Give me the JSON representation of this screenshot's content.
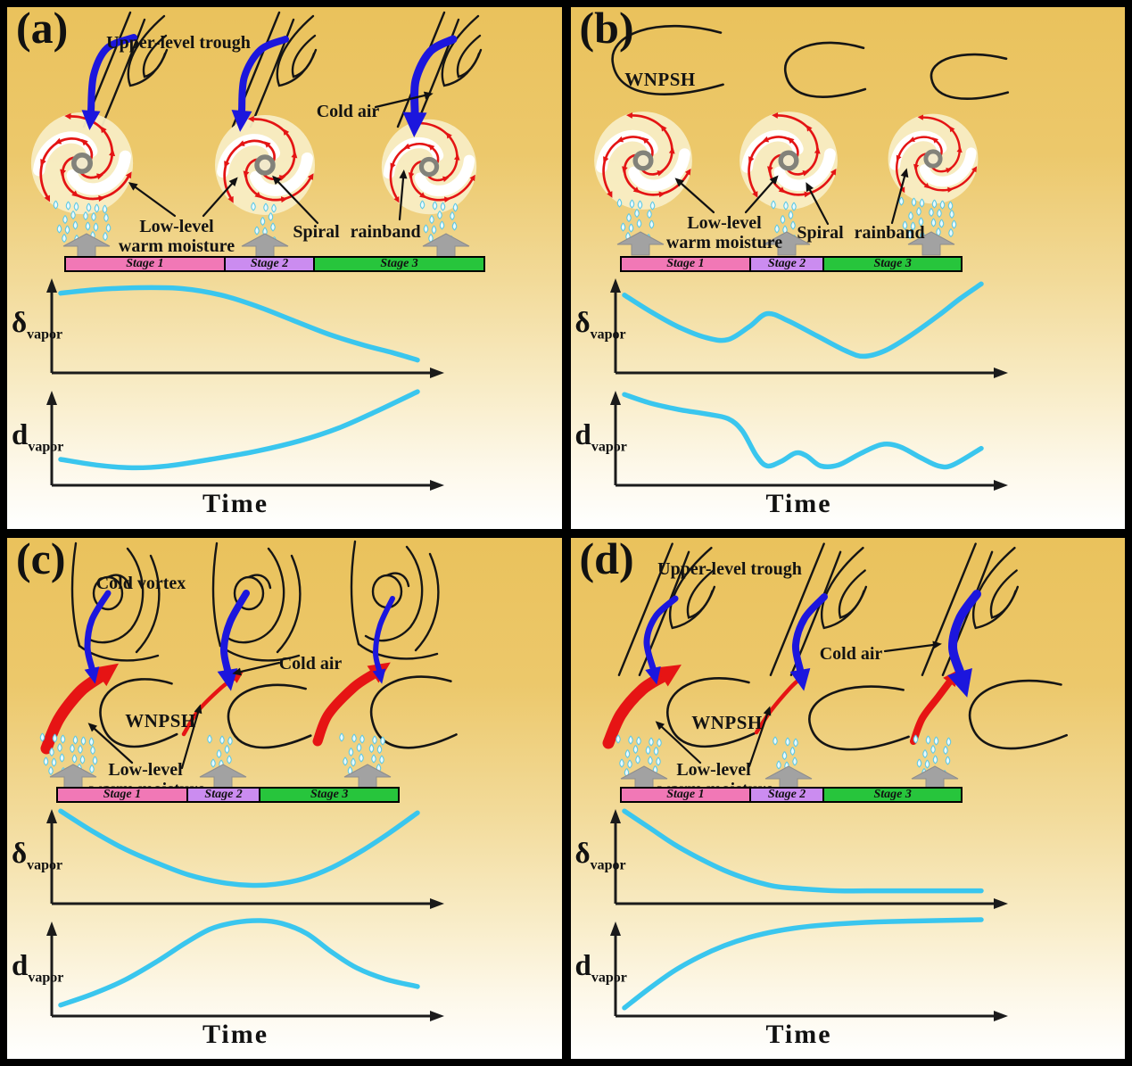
{
  "figure": {
    "layout": "2x2 panel schematic",
    "stage_colors": [
      "#f178b6",
      "#cb8cf0",
      "#27c53c"
    ],
    "curve_color": "#3ac6ee",
    "background_top": "#eac25c",
    "background_bottom": "#ffffff",
    "stage_widths_pct": [
      38,
      21.5,
      40.5
    ]
  },
  "panels": [
    {
      "id": "a",
      "label": "(a)",
      "scene": {
        "type": "upper-level-trough-with-typhoons",
        "labels": {
          "feature": "Upper-level trough",
          "cold_air": "Cold air",
          "low1": "Low-level",
          "low2": "warm moisture",
          "rainband": "Spiral rainband"
        }
      },
      "stages": [
        {
          "label": "Stage 1"
        },
        {
          "label": "Stage 2"
        },
        {
          "label": "Stage 3"
        }
      ],
      "charts": [
        {
          "sym": "δ",
          "sub": "vapor"
        },
        {
          "sym": "d",
          "sub": "vapor"
        }
      ],
      "xlabel": "Time"
    },
    {
      "id": "b",
      "label": "(b)",
      "scene": {
        "type": "wnpsh-with-typhoons",
        "labels": {
          "feature": "WNPSH",
          "low1": "Low-level",
          "low2": "warm moisture",
          "rainband": "Spiral rainband"
        }
      },
      "stages": [
        {
          "label": "Stage 1"
        },
        {
          "label": "Stage 2"
        },
        {
          "label": "Stage 3"
        }
      ],
      "charts": [
        {
          "sym": "δ",
          "sub": "vapor"
        },
        {
          "sym": "d",
          "sub": "vapor"
        }
      ],
      "xlabel": "Time"
    },
    {
      "id": "c",
      "label": "(c)",
      "scene": {
        "type": "cold-vortex-over-wnpsh",
        "labels": {
          "feature": "Cold vortex",
          "cold_air": "Cold air",
          "wnpsh": "WNPSH",
          "low1": "Low-level",
          "low2": "warm moisture"
        }
      },
      "stages": [
        {
          "label": "Stage 1"
        },
        {
          "label": "Stage 2"
        },
        {
          "label": "Stage 3"
        }
      ],
      "charts": [
        {
          "sym": "δ",
          "sub": "vapor"
        },
        {
          "sym": "d",
          "sub": "vapor"
        }
      ],
      "xlabel": "Time"
    },
    {
      "id": "d",
      "label": "(d)",
      "scene": {
        "type": "upper-level-trough-over-wnpsh",
        "labels": {
          "feature": "Upper-level trough",
          "cold_air": "Cold air",
          "wnpsh": "WNPSH",
          "low1": "Low-level",
          "low2": "warm moisture"
        }
      },
      "stages": [
        {
          "label": "Stage 1"
        },
        {
          "label": "Stage 2"
        },
        {
          "label": "Stage 3"
        }
      ],
      "charts": [
        {
          "sym": "δ",
          "sub": "vapor"
        },
        {
          "sym": "d",
          "sub": "vapor"
        }
      ],
      "xlabel": "Time"
    }
  ],
  "chart_data": [
    {
      "panel": "a",
      "type": "line",
      "xlabel": "Time",
      "x_range": [
        0,
        1
      ],
      "y_axis": "qualitative schematic (no ticks)",
      "stage_boundaries_x": [
        0.38,
        0.595
      ],
      "series": [
        {
          "name": "δ_vapor",
          "description": "high and nearly flat through Stage 1, then declines steadily through Stages 2-3 to a low value",
          "points": [
            [
              0,
              0.82
            ],
            [
              0.1,
              0.86
            ],
            [
              0.22,
              0.88
            ],
            [
              0.34,
              0.87
            ],
            [
              0.45,
              0.8
            ],
            [
              0.55,
              0.68
            ],
            [
              0.65,
              0.53
            ],
            [
              0.75,
              0.38
            ],
            [
              0.85,
              0.26
            ],
            [
              0.93,
              0.18
            ],
            [
              1,
              0.1
            ]
          ]
        },
        {
          "name": "d_vapor",
          "description": "low with a slight dip in Stage 1, then rises increasingly fast to a high value at the end",
          "points": [
            [
              0,
              0.24
            ],
            [
              0.1,
              0.18
            ],
            [
              0.2,
              0.15
            ],
            [
              0.3,
              0.17
            ],
            [
              0.42,
              0.24
            ],
            [
              0.55,
              0.33
            ],
            [
              0.67,
              0.44
            ],
            [
              0.78,
              0.58
            ],
            [
              0.88,
              0.75
            ],
            [
              1,
              0.97
            ]
          ]
        }
      ]
    },
    {
      "panel": "b",
      "type": "line",
      "xlabel": "Time",
      "x_range": [
        0,
        1
      ],
      "y_axis": "qualitative schematic (no ticks)",
      "stage_boundaries_x": [
        0.38,
        0.595
      ],
      "series": [
        {
          "name": "δ_vapor",
          "description": "falls to a minimum, recovers to a local maximum, falls to a deeper minimum near Stage 2/3 boundary, then rises to the highest value",
          "points": [
            [
              0,
              0.8
            ],
            [
              0.07,
              0.63
            ],
            [
              0.15,
              0.46
            ],
            [
              0.23,
              0.34
            ],
            [
              0.29,
              0.32
            ],
            [
              0.35,
              0.46
            ],
            [
              0.4,
              0.6
            ],
            [
              0.46,
              0.52
            ],
            [
              0.54,
              0.36
            ],
            [
              0.62,
              0.2
            ],
            [
              0.67,
              0.14
            ],
            [
              0.73,
              0.2
            ],
            [
              0.8,
              0.36
            ],
            [
              0.88,
              0.58
            ],
            [
              0.94,
              0.76
            ],
            [
              1,
              0.92
            ]
          ]
        },
        {
          "name": "d_vapor",
          "description": "starts high, gentle decline then sharp drop late in Stage 1, small oscillations (two bumps) through Stages 2-3, slight rise at end",
          "points": [
            [
              0,
              0.94
            ],
            [
              0.07,
              0.85
            ],
            [
              0.15,
              0.78
            ],
            [
              0.23,
              0.73
            ],
            [
              0.29,
              0.68
            ],
            [
              0.33,
              0.55
            ],
            [
              0.37,
              0.28
            ],
            [
              0.4,
              0.17
            ],
            [
              0.44,
              0.22
            ],
            [
              0.48,
              0.31
            ],
            [
              0.51,
              0.28
            ],
            [
              0.55,
              0.17
            ],
            [
              0.6,
              0.18
            ],
            [
              0.66,
              0.3
            ],
            [
              0.72,
              0.4
            ],
            [
              0.77,
              0.38
            ],
            [
              0.83,
              0.26
            ],
            [
              0.88,
              0.17
            ],
            [
              0.92,
              0.18
            ],
            [
              1,
              0.36
            ]
          ]
        }
      ]
    },
    {
      "panel": "c",
      "type": "line",
      "xlabel": "Time",
      "x_range": [
        0,
        1
      ],
      "y_axis": "qualitative schematic (no ticks)",
      "stage_boundaries_x": [
        0.38,
        0.595
      ],
      "series": [
        {
          "name": "δ_vapor",
          "description": "U-shape: high at start, broad minimum around Stage 2, rises back to high at end",
          "points": [
            [
              0,
              0.96
            ],
            [
              0.09,
              0.74
            ],
            [
              0.18,
              0.55
            ],
            [
              0.27,
              0.4
            ],
            [
              0.36,
              0.27
            ],
            [
              0.45,
              0.19
            ],
            [
              0.53,
              0.16
            ],
            [
              0.6,
              0.17
            ],
            [
              0.68,
              0.23
            ],
            [
              0.76,
              0.35
            ],
            [
              0.84,
              0.52
            ],
            [
              0.92,
              0.72
            ],
            [
              1,
              0.94
            ]
          ]
        },
        {
          "name": "d_vapor",
          "description": "inverted U: low at start, broad plateau maximum around Stage 2, declines through Stage 3",
          "points": [
            [
              0,
              0.08
            ],
            [
              0.09,
              0.2
            ],
            [
              0.18,
              0.35
            ],
            [
              0.27,
              0.55
            ],
            [
              0.35,
              0.75
            ],
            [
              0.42,
              0.9
            ],
            [
              0.49,
              0.97
            ],
            [
              0.56,
              0.99
            ],
            [
              0.62,
              0.96
            ],
            [
              0.69,
              0.85
            ],
            [
              0.76,
              0.65
            ],
            [
              0.83,
              0.48
            ],
            [
              0.91,
              0.36
            ],
            [
              1,
              0.28
            ]
          ]
        }
      ]
    },
    {
      "panel": "d",
      "type": "line",
      "xlabel": "Time",
      "x_range": [
        0,
        1
      ],
      "y_axis": "qualitative schematic (no ticks)",
      "stage_boundaries_x": [
        0.38,
        0.595
      ],
      "series": [
        {
          "name": "δ_vapor",
          "description": "exponential-like decay from high to a low flat plateau reached near end of Stage 1",
          "points": [
            [
              0,
              0.96
            ],
            [
              0.07,
              0.78
            ],
            [
              0.14,
              0.6
            ],
            [
              0.21,
              0.45
            ],
            [
              0.28,
              0.32
            ],
            [
              0.35,
              0.22
            ],
            [
              0.42,
              0.15
            ],
            [
              0.5,
              0.12
            ],
            [
              0.6,
              0.1
            ],
            [
              0.72,
              0.1
            ],
            [
              0.85,
              0.1
            ],
            [
              1,
              0.1
            ]
          ]
        },
        {
          "name": "d_vapor",
          "description": "exponential-like rise from low to a high flat plateau reached near end of Stage 1",
          "points": [
            [
              0,
              0.05
            ],
            [
              0.07,
              0.26
            ],
            [
              0.14,
              0.45
            ],
            [
              0.21,
              0.6
            ],
            [
              0.28,
              0.72
            ],
            [
              0.35,
              0.81
            ],
            [
              0.43,
              0.88
            ],
            [
              0.52,
              0.93
            ],
            [
              0.62,
              0.96
            ],
            [
              0.74,
              0.98
            ],
            [
              0.87,
              0.99
            ],
            [
              1,
              1
            ]
          ]
        }
      ]
    }
  ]
}
